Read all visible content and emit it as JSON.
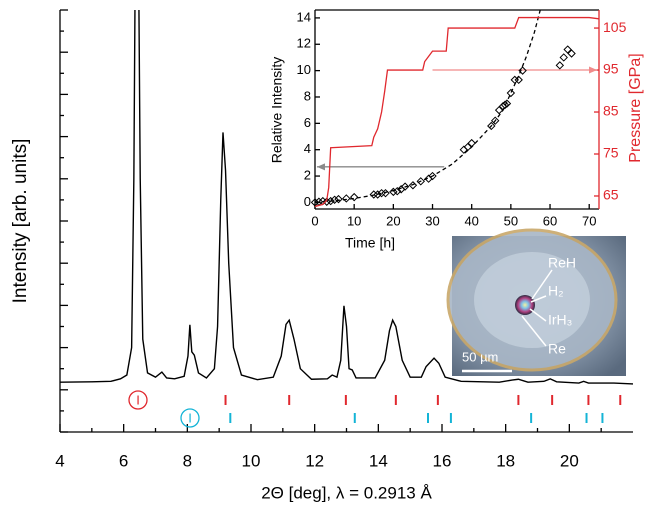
{
  "chart_data": [
    {
      "type": "line",
      "x_label": "2Θ [deg],  λ = 0.2913 Å",
      "y_label": "Intensity [arb. units]",
      "xlim": [
        4,
        22
      ],
      "ylim": [
        0,
        100
      ],
      "xticks": [
        4,
        6,
        8,
        10,
        12,
        14,
        16,
        18,
        20
      ],
      "xminorticks": [
        5,
        7,
        9,
        11,
        13,
        15,
        17,
        19,
        21
      ],
      "yticks": [
        0,
        5,
        10,
        15,
        20,
        25,
        30,
        35,
        40,
        45,
        50,
        55,
        60,
        65,
        70,
        75,
        80,
        85,
        90,
        95,
        100
      ],
      "color": "#000000",
      "x": [
        4.0,
        5.0,
        5.6,
        5.9,
        6.1,
        6.25,
        6.32,
        6.38,
        6.45,
        6.52,
        6.6,
        6.75,
        7.0,
        7.2,
        7.35,
        7.6,
        7.9,
        8.02,
        8.08,
        8.14,
        8.22,
        8.35,
        8.6,
        8.85,
        8.95,
        9.05,
        9.12,
        9.2,
        9.3,
        9.45,
        9.7,
        10.2,
        10.7,
        10.95,
        11.1,
        11.2,
        11.35,
        11.55,
        11.9,
        12.4,
        12.55,
        12.7,
        12.82,
        12.92,
        13.0,
        13.08,
        13.18,
        13.3,
        13.9,
        14.2,
        14.35,
        14.45,
        14.55,
        14.75,
        15.0,
        15.35,
        15.5,
        15.75,
        15.9,
        16.1,
        16.6,
        17.8,
        18.2,
        18.4,
        18.7,
        19.2,
        19.4,
        19.6,
        20.3,
        20.45,
        20.6,
        21.4,
        22.0
      ],
      "values": [
        11.8,
        11.9,
        12.0,
        12.6,
        13.5,
        20,
        60,
        130,
        130,
        60,
        22,
        14,
        13,
        14.2,
        12.8,
        12.6,
        13.2,
        18,
        25.4,
        19,
        18.2,
        14,
        12.8,
        15,
        25,
        55,
        71,
        62,
        40,
        20,
        13.5,
        12.4,
        13,
        18,
        25.5,
        26.5,
        22,
        15,
        12.5,
        12.6,
        13.5,
        13,
        17,
        29.9,
        25,
        15,
        14.7,
        12.8,
        12.8,
        17,
        24,
        26.5,
        25,
        17,
        13,
        13,
        15.5,
        17.5,
        16.3,
        13,
        12,
        11.8,
        12.3,
        12.5,
        11.8,
        12,
        12.6,
        11.9,
        11.6,
        12,
        11.6,
        11.6,
        11.4
      ],
      "reflections": [
        {
          "label": "I",
          "color": "#e0282e",
          "positions": [
            9.2,
            11.2,
            12.98,
            14.55,
            15.87,
            18.4,
            19.46,
            20.6,
            21.6
          ]
        },
        {
          "label": "I",
          "color": "#14b4d6",
          "positions": [
            9.35,
            13.26,
            15.56,
            16.28,
            18.8,
            20.54,
            21.04
          ]
        }
      ],
      "image_labels": [
        "ReH",
        "H₂",
        "IrH₃",
        "Re"
      ],
      "scale_bar": "50 µm"
    },
    {
      "type": "scatter",
      "x_label": "Time [h]",
      "y_label": "Relative Intensity",
      "y2_label": "Pressure [GPa]",
      "xlim": [
        0,
        72.5
      ],
      "ylim": [
        -0.5,
        14.6
      ],
      "y2lim": [
        61.9,
        109.3
      ],
      "xticks": [
        0,
        10,
        20,
        30,
        40,
        50,
        60,
        70
      ],
      "yticks": [
        0,
        2,
        4,
        6,
        8,
        10,
        12,
        14
      ],
      "y2ticks": [
        65,
        75,
        85,
        95,
        105
      ],
      "y2color": "#e0282e",
      "series": [
        {
          "type": "scatter",
          "color": "#000000",
          "x": [
            0,
            1,
            2,
            3,
            4,
            5,
            6,
            8,
            10,
            15,
            16,
            17,
            18,
            20,
            21,
            22,
            23,
            25,
            27,
            29,
            30,
            38,
            39,
            40,
            45,
            46,
            47,
            48,
            48.5,
            49,
            50,
            51,
            52,
            53,
            62.5,
            63.5,
            64.5,
            65.5
          ],
          "values": [
            0,
            0.05,
            0.1,
            0.05,
            0.1,
            0.2,
            0.25,
            0.3,
            0.4,
            0.6,
            0.6,
            0.7,
            0.7,
            0.8,
            0.85,
            1.0,
            1.2,
            1.3,
            1.6,
            1.8,
            2.0,
            4.0,
            4.2,
            4.5,
            5.8,
            6.2,
            7.0,
            7.3,
            7.4,
            7.5,
            8.3,
            9.3,
            9.3,
            10,
            10.4,
            11.0,
            11.6,
            11.3
          ]
        },
        {
          "type": "line",
          "dashed": true,
          "color": "#000000",
          "x": [
            0,
            5,
            10,
            15,
            20,
            25,
            30,
            35,
            40,
            45,
            48,
            50,
            52,
            54,
            56,
            57.5
          ],
          "values": [
            0,
            0.12,
            0.3,
            0.55,
            0.9,
            1.35,
            2.0,
            2.9,
            4.2,
            5.8,
            7.0,
            8.3,
            9.6,
            11.1,
            12.9,
            14.6
          ]
        },
        {
          "type": "line",
          "axis": "y2",
          "color": "#e0282e",
          "x": [
            0,
            2,
            3,
            3.5,
            4,
            14.5,
            15,
            16,
            17,
            17.8,
            18.5,
            27.5,
            28,
            30,
            33.5,
            34,
            51,
            52,
            70,
            72.5
          ],
          "values": [
            62.5,
            63,
            64,
            67,
            76.5,
            77,
            79,
            81,
            85,
            90,
            95,
            95,
            97,
            99.5,
            99.5,
            105,
            105,
            107.5,
            107.5,
            107.2
          ]
        }
      ],
      "arrows": [
        {
          "from": [
            33,
            2.7
          ],
          "to": [
            0.5,
            2.7
          ],
          "color": "#8a8a8a"
        },
        {
          "from": [
            30,
            95
          ],
          "to": [
            72,
            95
          ],
          "axis": "y2",
          "color": "#f08a8a"
        }
      ]
    }
  ]
}
